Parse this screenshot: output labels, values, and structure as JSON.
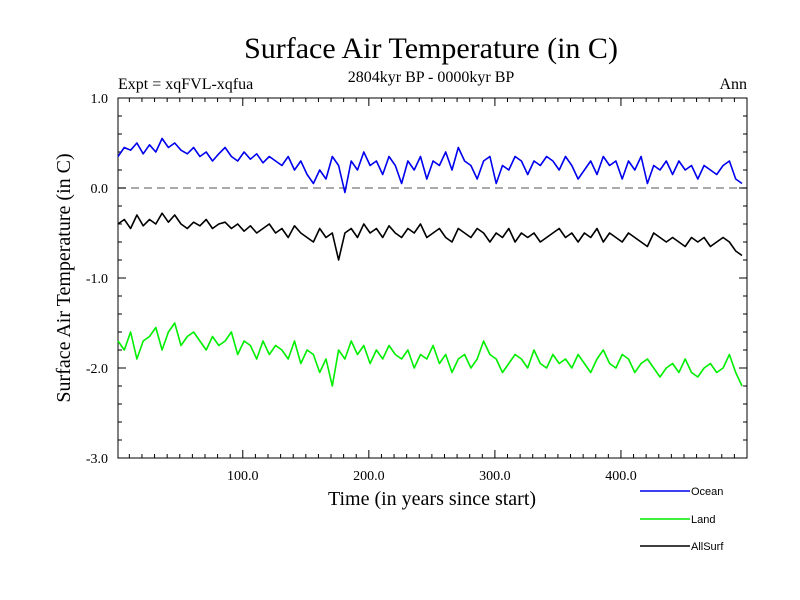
{
  "chart_data": {
    "type": "line",
    "title": "Surface Air Temperature (in C)",
    "subtitle": "2804kyr BP - 0000kyr BP",
    "left_label": "Expt = xqFVL-xqfua",
    "right_label": "Ann",
    "xlabel": "Time (in years since start)",
    "ylabel": "Surface Air Temperature (in C)",
    "xlim": [
      1,
      500
    ],
    "ylim": [
      -3.0,
      1.0
    ],
    "x_ticks": [
      "100.0",
      "200.0",
      "300.0",
      "400.0"
    ],
    "x_tick_values": [
      100,
      200,
      300,
      400
    ],
    "y_ticks": [
      "1.0",
      "0.0",
      "-1.0",
      "-2.0",
      "-3.0"
    ],
    "y_tick_values": [
      1.0,
      0.0,
      -1.0,
      -2.0,
      -3.0
    ],
    "reference_line": 0.0,
    "series": [
      {
        "name": "Ocean",
        "color": "#0000ee",
        "sample_every_years": 5,
        "values": [
          0.35,
          0.45,
          0.42,
          0.5,
          0.38,
          0.48,
          0.4,
          0.55,
          0.45,
          0.5,
          0.42,
          0.38,
          0.45,
          0.35,
          0.4,
          0.3,
          0.38,
          0.45,
          0.35,
          0.3,
          0.4,
          0.32,
          0.38,
          0.28,
          0.35,
          0.3,
          0.25,
          0.35,
          0.2,
          0.3,
          0.15,
          0.05,
          0.2,
          0.1,
          0.35,
          0.25,
          -0.05,
          0.3,
          0.2,
          0.4,
          0.25,
          0.3,
          0.15,
          0.35,
          0.25,
          0.05,
          0.3,
          0.2,
          0.35,
          0.1,
          0.3,
          0.25,
          0.4,
          0.2,
          0.45,
          0.3,
          0.25,
          0.1,
          0.3,
          0.35,
          0.05,
          0.25,
          0.2,
          0.35,
          0.3,
          0.15,
          0.3,
          0.25,
          0.35,
          0.3,
          0.2,
          0.35,
          0.25,
          0.1,
          0.2,
          0.3,
          0.15,
          0.35,
          0.25,
          0.3,
          0.1,
          0.3,
          0.2,
          0.35,
          0.05,
          0.25,
          0.2,
          0.3,
          0.15,
          0.3,
          0.2,
          0.25,
          0.1,
          0.25,
          0.2,
          0.15,
          0.25,
          0.3,
          0.1,
          0.05
        ]
      },
      {
        "name": "Land",
        "color": "#00ee00",
        "sample_every_years": 5,
        "values": [
          -1.7,
          -1.8,
          -1.6,
          -1.9,
          -1.7,
          -1.65,
          -1.55,
          -1.8,
          -1.6,
          -1.5,
          -1.75,
          -1.65,
          -1.6,
          -1.7,
          -1.8,
          -1.65,
          -1.75,
          -1.7,
          -1.6,
          -1.85,
          -1.7,
          -1.75,
          -1.9,
          -1.7,
          -1.85,
          -1.75,
          -1.8,
          -1.9,
          -1.7,
          -1.95,
          -1.8,
          -1.85,
          -2.05,
          -1.9,
          -2.2,
          -1.8,
          -1.9,
          -1.7,
          -1.85,
          -1.75,
          -1.95,
          -1.8,
          -1.9,
          -1.75,
          -1.85,
          -1.9,
          -1.8,
          -2.0,
          -1.85,
          -1.9,
          -1.75,
          -1.95,
          -1.85,
          -2.05,
          -1.9,
          -1.85,
          -2.0,
          -1.9,
          -1.7,
          -1.85,
          -1.9,
          -2.05,
          -1.95,
          -1.85,
          -1.9,
          -2.0,
          -1.8,
          -1.95,
          -2.0,
          -1.85,
          -1.95,
          -1.9,
          -2.0,
          -1.85,
          -1.95,
          -2.05,
          -1.9,
          -1.8,
          -1.95,
          -2.0,
          -1.85,
          -1.9,
          -2.05,
          -1.95,
          -1.9,
          -2.0,
          -2.1,
          -2.0,
          -1.95,
          -2.05,
          -1.9,
          -2.05,
          -2.1,
          -2.0,
          -1.95,
          -2.05,
          -2.0,
          -1.85,
          -2.05,
          -2.2
        ]
      },
      {
        "name": "AllSurf",
        "color": "#000000",
        "sample_every_years": 5,
        "values": [
          -0.4,
          -0.35,
          -0.45,
          -0.3,
          -0.42,
          -0.35,
          -0.4,
          -0.28,
          -0.38,
          -0.3,
          -0.4,
          -0.45,
          -0.38,
          -0.42,
          -0.35,
          -0.45,
          -0.4,
          -0.38,
          -0.45,
          -0.4,
          -0.48,
          -0.42,
          -0.5,
          -0.45,
          -0.4,
          -0.5,
          -0.45,
          -0.55,
          -0.42,
          -0.5,
          -0.55,
          -0.6,
          -0.45,
          -0.55,
          -0.5,
          -0.8,
          -0.5,
          -0.45,
          -0.55,
          -0.4,
          -0.5,
          -0.45,
          -0.55,
          -0.42,
          -0.5,
          -0.55,
          -0.45,
          -0.5,
          -0.4,
          -0.55,
          -0.5,
          -0.45,
          -0.55,
          -0.6,
          -0.45,
          -0.5,
          -0.55,
          -0.45,
          -0.5,
          -0.6,
          -0.5,
          -0.55,
          -0.45,
          -0.6,
          -0.5,
          -0.55,
          -0.5,
          -0.6,
          -0.55,
          -0.5,
          -0.45,
          -0.55,
          -0.5,
          -0.6,
          -0.5,
          -0.55,
          -0.45,
          -0.6,
          -0.5,
          -0.55,
          -0.6,
          -0.5,
          -0.55,
          -0.6,
          -0.65,
          -0.5,
          -0.55,
          -0.6,
          -0.55,
          -0.6,
          -0.65,
          -0.55,
          -0.6,
          -0.55,
          -0.65,
          -0.6,
          -0.55,
          -0.6,
          -0.7,
          -0.75
        ]
      }
    ]
  }
}
